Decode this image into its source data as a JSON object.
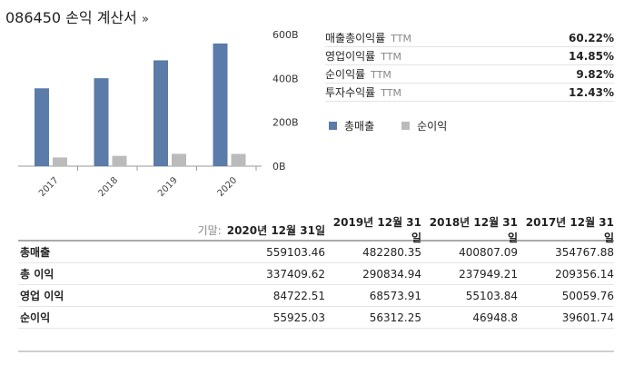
{
  "title": "086450 손익 계산서",
  "title_arrow": "»",
  "colors": {
    "revenue": "#5b7ba8",
    "net_income": "#bbbbbb"
  },
  "chart_data": {
    "type": "bar",
    "categories": [
      "2017",
      "2018",
      "2019",
      "2020"
    ],
    "series": [
      {
        "name": "총매출",
        "values": [
          354767.88,
          400807.09,
          482280.35,
          559103.46
        ]
      },
      {
        "name": "순이익",
        "values": [
          39601.74,
          46948.8,
          56312.25,
          55925.03
        ]
      }
    ],
    "y_ticks": [
      "0B",
      "200B",
      "400B",
      "600B"
    ],
    "ylim": [
      0,
      600000
    ],
    "grid": false,
    "legend_position": "below-right"
  },
  "ratios": [
    {
      "label": "매출총이익률",
      "ttm": "TTM",
      "value": "60.22%"
    },
    {
      "label": "영업이익률",
      "ttm": "TTM",
      "value": "14.85%"
    },
    {
      "label": "순이익률",
      "ttm": "TTM",
      "value": "9.82%"
    },
    {
      "label": "투자수익률",
      "ttm": "TTM",
      "value": "12.43%"
    }
  ],
  "legend": {
    "revenue": "총매출",
    "net_income": "순이익"
  },
  "table": {
    "base_label": "기말:",
    "columns": [
      "2020년 12월 31일",
      "2019년 12월 31일",
      "2018년 12월 31일",
      "2017년 12월 31일"
    ],
    "rows": [
      {
        "label": "총매출",
        "values": [
          "559103.46",
          "482280.35",
          "400807.09",
          "354767.88"
        ]
      },
      {
        "label": "총 이익",
        "values": [
          "337409.62",
          "290834.94",
          "237949.21",
          "209356.14"
        ]
      },
      {
        "label": "영업 이익",
        "values": [
          "84722.51",
          "68573.91",
          "55103.84",
          "50059.76"
        ]
      },
      {
        "label": "순이익",
        "values": [
          "55925.03",
          "56312.25",
          "46948.8",
          "39601.74"
        ]
      }
    ]
  }
}
